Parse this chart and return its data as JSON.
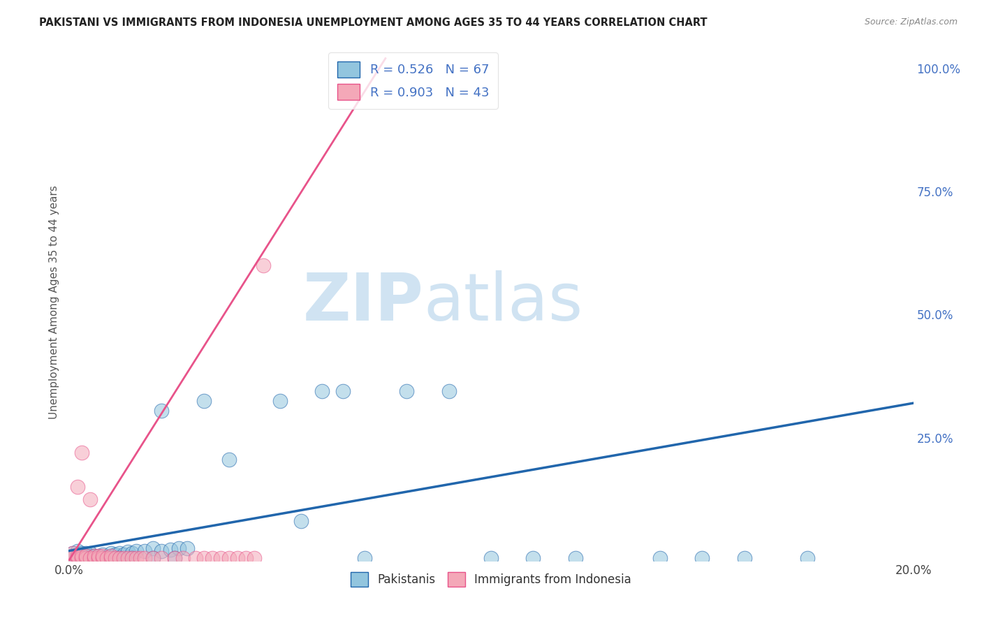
{
  "title": "PAKISTANI VS IMMIGRANTS FROM INDONESIA UNEMPLOYMENT AMONG AGES 35 TO 44 YEARS CORRELATION CHART",
  "source": "Source: ZipAtlas.com",
  "ylabel": "Unemployment Among Ages 35 to 44 years",
  "xlim": [
    0.0,
    0.2
  ],
  "ylim": [
    0.0,
    1.05
  ],
  "xticks": [
    0.0,
    0.05,
    0.1,
    0.15,
    0.2
  ],
  "xticklabels": [
    "0.0%",
    "",
    "",
    "",
    "20.0%"
  ],
  "yticks": [
    0.0,
    0.25,
    0.5,
    0.75,
    1.0
  ],
  "yticklabels": [
    "",
    "25.0%",
    "50.0%",
    "75.0%",
    "100.0%"
  ],
  "pakistanis_R": 0.526,
  "pakistanis_N": 67,
  "indonesia_R": 0.903,
  "indonesia_N": 43,
  "blue_color": "#92c5de",
  "pink_color": "#f4a8b8",
  "blue_line_color": "#2166ac",
  "pink_line_color": "#e8538a",
  "watermark_zip": "ZIP",
  "watermark_atlas": "atlas",
  "pak_line_x": [
    0.0,
    0.2
  ],
  "pak_line_y": [
    0.02,
    0.32
  ],
  "indo_line_x": [
    0.0,
    0.075
  ],
  "indo_line_y": [
    0.0,
    1.02
  ],
  "pak_x": [
    0.001,
    0.001,
    0.001,
    0.001,
    0.002,
    0.002,
    0.002,
    0.002,
    0.002,
    0.003,
    0.003,
    0.003,
    0.003,
    0.004,
    0.004,
    0.004,
    0.005,
    0.005,
    0.005,
    0.006,
    0.006,
    0.007,
    0.007,
    0.008,
    0.008,
    0.009,
    0.01,
    0.01,
    0.011,
    0.012,
    0.013,
    0.014,
    0.015,
    0.016,
    0.018,
    0.02,
    0.022,
    0.024,
    0.026,
    0.028,
    0.022,
    0.032,
    0.038,
    0.05,
    0.055,
    0.06,
    0.065,
    0.07,
    0.08,
    0.09,
    0.1,
    0.11,
    0.12,
    0.14,
    0.15,
    0.16,
    0.175,
    0.003,
    0.004,
    0.005,
    0.006,
    0.008,
    0.01,
    0.012,
    0.015,
    0.02,
    0.025
  ],
  "pak_y": [
    0.005,
    0.008,
    0.01,
    0.015,
    0.005,
    0.008,
    0.01,
    0.012,
    0.02,
    0.005,
    0.008,
    0.012,
    0.015,
    0.005,
    0.01,
    0.015,
    0.005,
    0.01,
    0.015,
    0.005,
    0.01,
    0.005,
    0.01,
    0.005,
    0.012,
    0.008,
    0.01,
    0.015,
    0.012,
    0.015,
    0.012,
    0.018,
    0.015,
    0.02,
    0.02,
    0.025,
    0.02,
    0.022,
    0.025,
    0.025,
    0.305,
    0.325,
    0.205,
    0.325,
    0.08,
    0.345,
    0.345,
    0.005,
    0.345,
    0.345,
    0.005,
    0.005,
    0.005,
    0.005,
    0.005,
    0.005,
    0.005,
    0.005,
    0.005,
    0.005,
    0.005,
    0.005,
    0.005,
    0.005,
    0.005,
    0.005,
    0.005
  ],
  "indo_x": [
    0.001,
    0.001,
    0.001,
    0.002,
    0.002,
    0.002,
    0.003,
    0.003,
    0.003,
    0.004,
    0.004,
    0.005,
    0.005,
    0.006,
    0.006,
    0.007,
    0.007,
    0.008,
    0.008,
    0.009,
    0.01,
    0.01,
    0.011,
    0.012,
    0.013,
    0.014,
    0.015,
    0.016,
    0.017,
    0.018,
    0.02,
    0.022,
    0.025,
    0.027,
    0.03,
    0.032,
    0.034,
    0.036,
    0.038,
    0.04,
    0.042,
    0.044,
    0.046
  ],
  "indo_y": [
    0.005,
    0.01,
    0.015,
    0.005,
    0.01,
    0.15,
    0.005,
    0.01,
    0.22,
    0.005,
    0.01,
    0.005,
    0.125,
    0.005,
    0.01,
    0.005,
    0.01,
    0.005,
    0.01,
    0.005,
    0.005,
    0.01,
    0.005,
    0.005,
    0.005,
    0.005,
    0.005,
    0.005,
    0.005,
    0.005,
    0.005,
    0.005,
    0.005,
    0.005,
    0.005,
    0.005,
    0.005,
    0.005,
    0.005,
    0.005,
    0.005,
    0.005,
    0.6
  ]
}
